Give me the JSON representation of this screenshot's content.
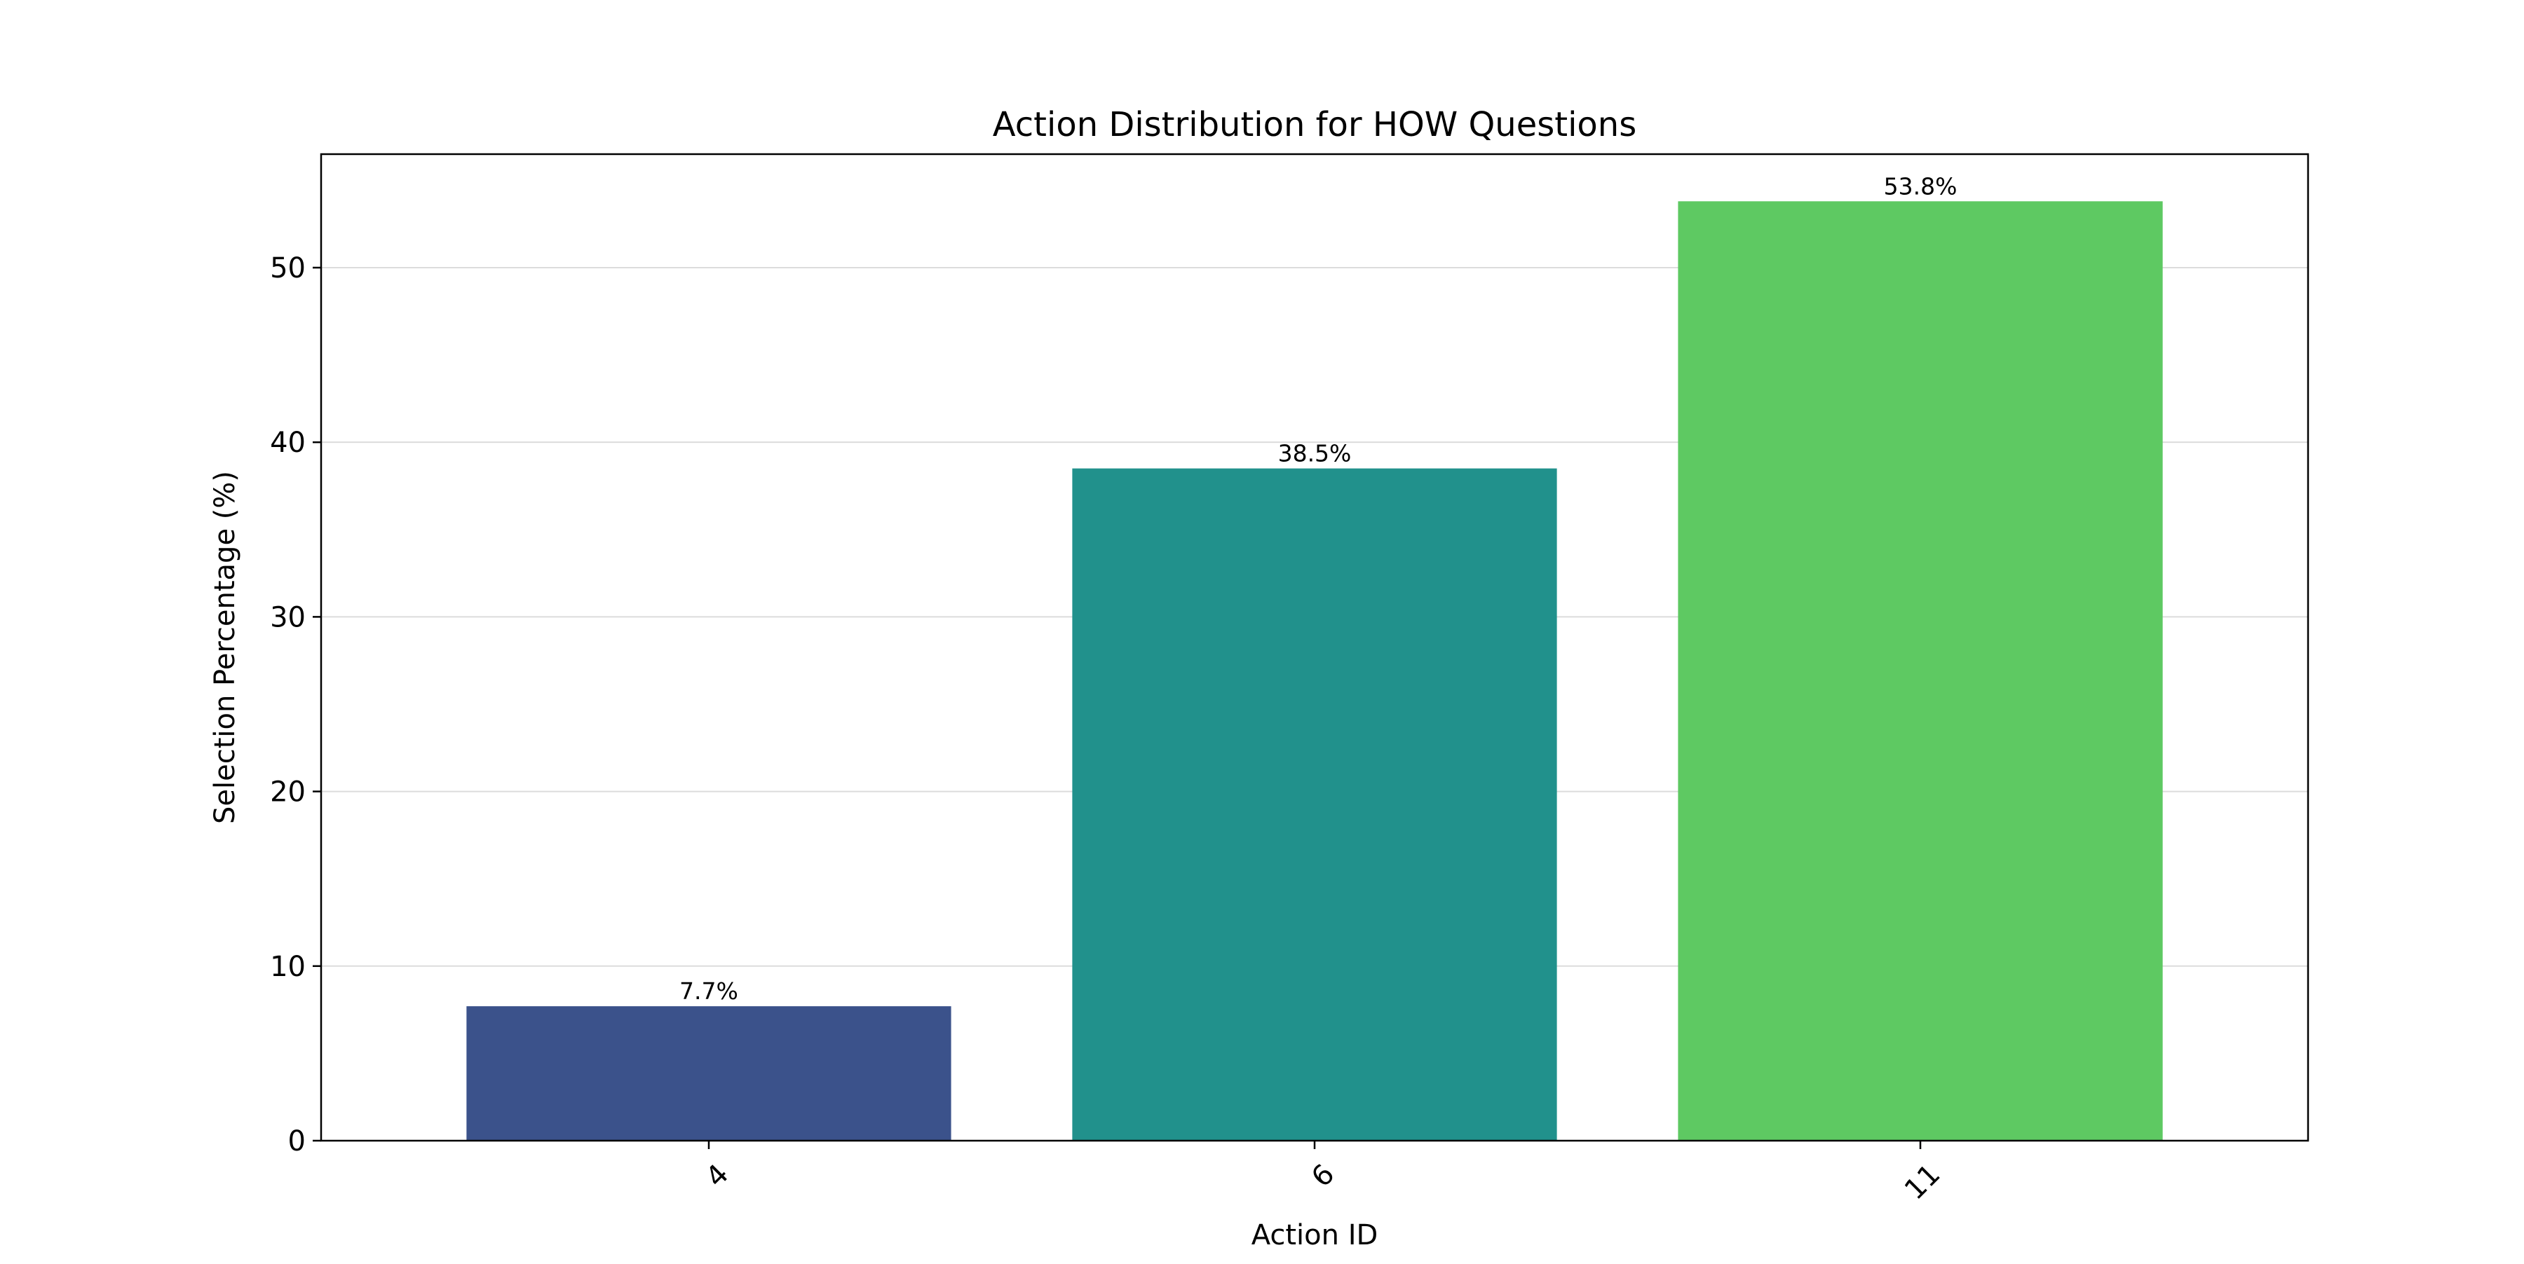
{
  "chart_data": {
    "type": "bar",
    "title": "Action Distribution for HOW Questions",
    "xlabel": "Action ID",
    "ylabel": "Selection Percentage (%)",
    "categories": [
      "4",
      "6",
      "11"
    ],
    "values": [
      7.7,
      38.5,
      53.8
    ],
    "value_labels": [
      "7.7%",
      "38.5%",
      "53.8%"
    ],
    "bar_colors": [
      "#3b528b",
      "#21918c",
      "#5ec962"
    ],
    "ylim": [
      0,
      56.5
    ],
    "yticks": [
      0,
      10,
      20,
      30,
      40,
      50
    ],
    "grid": "horizontal",
    "xtick_rotation": "45deg"
  }
}
